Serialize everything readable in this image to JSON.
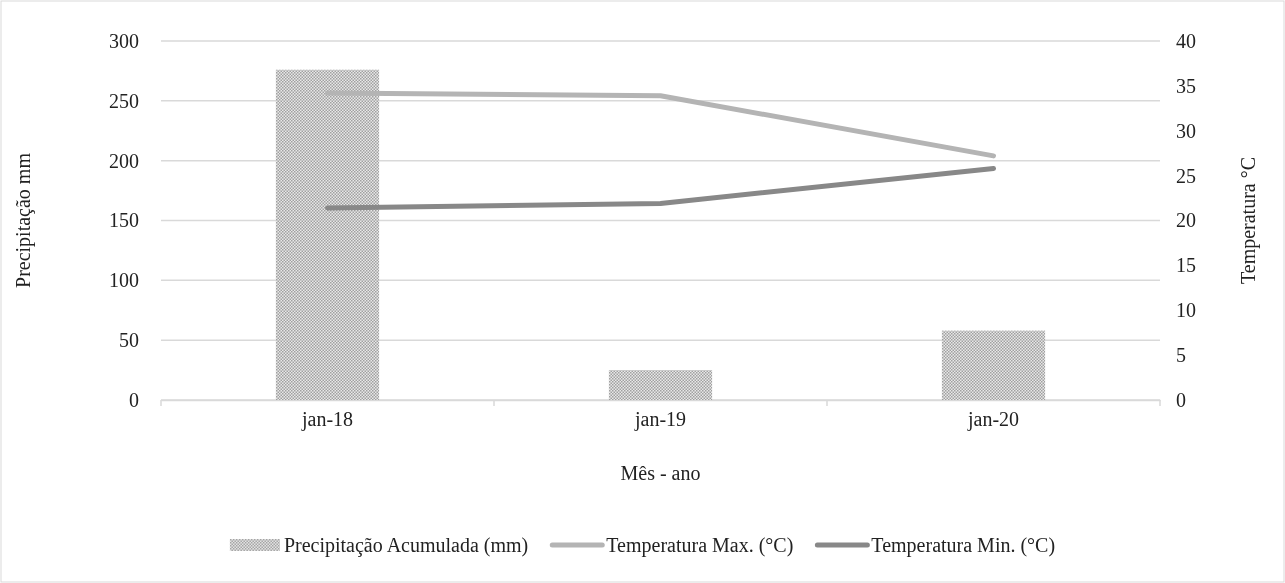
{
  "chart_data": {
    "type": "bar",
    "xlabel": "Mês - ano",
    "ylabel": "Precipitação mm",
    "y2label": "Temperatura °C",
    "categories": [
      "jan-18",
      "jan-19",
      "jan-20"
    ],
    "series": [
      {
        "name": "Precipitação Acumulada (mm)",
        "color": "#a0a0a0",
        "values": [
          276,
          25,
          58
        ]
      },
      {
        "name": "Temperatura Max. (°C)",
        "type": "line",
        "axis": "y2",
        "color": "#b4b4b4",
        "values": [
          34.2,
          33.9,
          27.2
        ]
      },
      {
        "name": "Temperatura Min. (°C)",
        "type": "line",
        "axis": "y2",
        "color": "#888888",
        "values": [
          21.4,
          21.9,
          25.8
        ]
      }
    ],
    "ylim": [
      0,
      300
    ],
    "yticks": [
      0,
      50,
      100,
      150,
      200,
      250,
      300
    ],
    "y2lim": [
      0,
      40
    ],
    "y2ticks": [
      0,
      5,
      10,
      15,
      20,
      25,
      30,
      35,
      40
    ],
    "grid": "y",
    "legend": "bottom",
    "marker": "none",
    "line_style": "solid"
  }
}
